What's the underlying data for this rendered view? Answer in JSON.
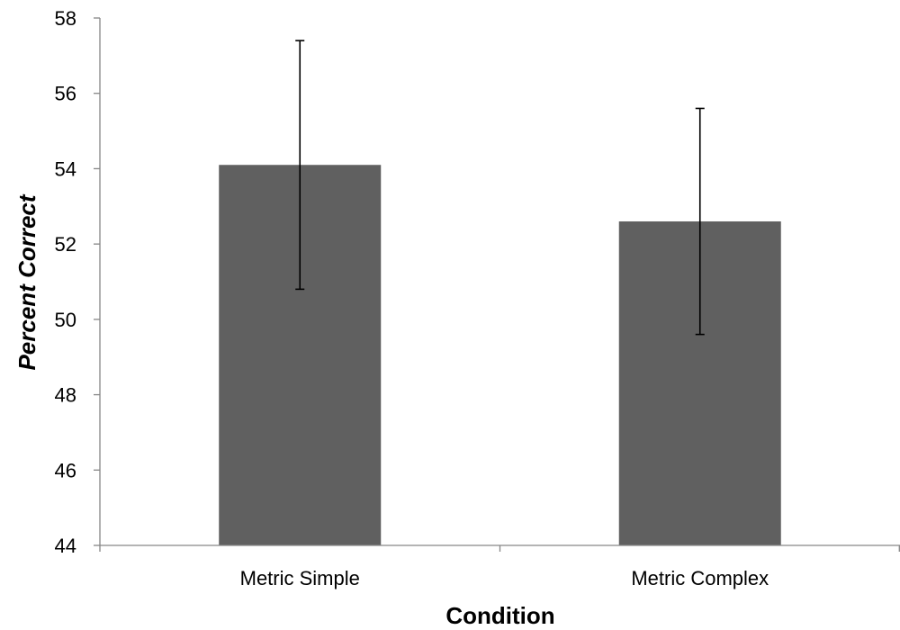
{
  "chart_data": {
    "type": "bar",
    "categories": [
      "Metric Simple",
      "Metric Complex"
    ],
    "values": [
      54.1,
      52.6
    ],
    "error_low": [
      50.8,
      49.6
    ],
    "error_high": [
      57.4,
      55.6
    ],
    "xlabel": "Condition",
    "ylabel": "Percent Correct",
    "ylim": [
      44,
      58
    ],
    "yticks": [
      44,
      46,
      48,
      50,
      52,
      54,
      56,
      58
    ],
    "grid": false,
    "legend": "none",
    "bar_color": "#606060",
    "axis_color": "#868686",
    "error_bar_color": "#000000"
  }
}
